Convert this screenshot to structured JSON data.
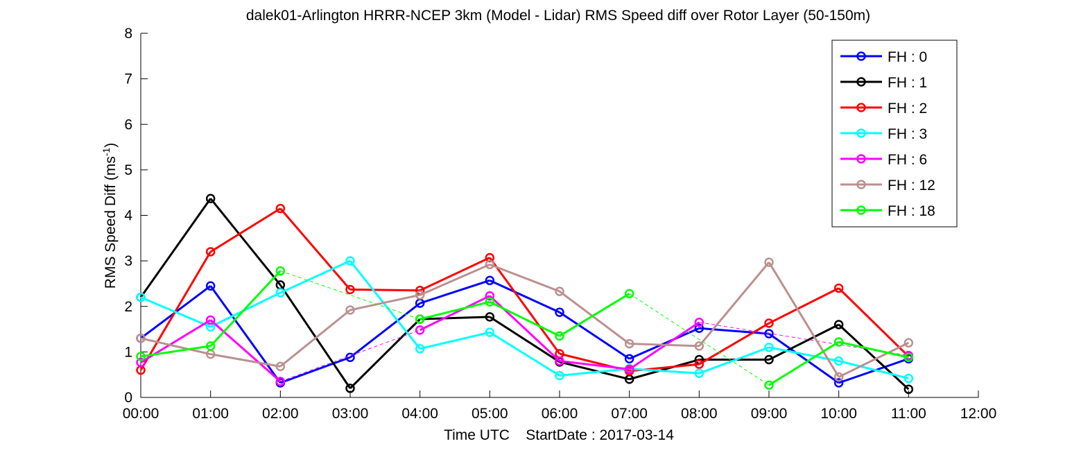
{
  "chart_data": {
    "type": "line",
    "title": "dalek01-Arlington HRRR-NCEP 3km (Model - Lidar) RMS Speed diff over Rotor Layer (50-150m)",
    "xlabel": "Time UTC    StartDate : 2017-03-14",
    "ylabel_main": "RMS Speed Diff (ms",
    "ylabel_sup": "-1",
    "ylabel_close": ")",
    "xlim": [
      0,
      12
    ],
    "ylim": [
      0,
      8
    ],
    "x_ticks": [
      0,
      1,
      2,
      3,
      4,
      5,
      6,
      7,
      8,
      9,
      10,
      11,
      12
    ],
    "x_tick_labels": [
      "00:00",
      "01:00",
      "02:00",
      "03:00",
      "04:00",
      "05:00",
      "06:00",
      "07:00",
      "08:00",
      "09:00",
      "10:00",
      "11:00",
      "12:00"
    ],
    "y_ticks": [
      0,
      1,
      2,
      3,
      4,
      5,
      6,
      7,
      8
    ],
    "y_tick_labels": [
      "0",
      "1",
      "2",
      "3",
      "4",
      "5",
      "6",
      "7",
      "8"
    ],
    "grid": false,
    "legend_position": "top-right",
    "series": [
      {
        "name": "FH : 0",
        "color": "#0000ff",
        "x": [
          0,
          1,
          2,
          3,
          4,
          5,
          6,
          7,
          8,
          9,
          10,
          11
        ],
        "y": [
          1.3,
          2.45,
          0.32,
          0.88,
          2.07,
          2.57,
          1.87,
          0.85,
          1.52,
          1.4,
          0.32,
          0.85
        ]
      },
      {
        "name": "FH : 1",
        "color": "#000000",
        "x": [
          0,
          1,
          2,
          3,
          4,
          5,
          6,
          7,
          8,
          9,
          10,
          11
        ],
        "y": [
          2.2,
          4.37,
          2.47,
          0.2,
          1.72,
          1.77,
          0.78,
          0.4,
          0.83,
          0.83,
          1.6,
          0.18
        ]
      },
      {
        "name": "FH : 2",
        "color": "#ff0000",
        "x": [
          0,
          1,
          2,
          3,
          4,
          5,
          6,
          7,
          8,
          9,
          10,
          11
        ],
        "y": [
          0.6,
          3.2,
          4.15,
          2.37,
          2.35,
          3.07,
          0.96,
          0.58,
          0.73,
          1.63,
          2.4,
          0.9
        ]
      },
      {
        "name": "FH : 3",
        "color": "#00ffff",
        "x": [
          0,
          1,
          2,
          3,
          4,
          5,
          6,
          7,
          8,
          9,
          10,
          11
        ],
        "y": [
          2.2,
          1.55,
          2.3,
          3.0,
          1.07,
          1.43,
          0.48,
          0.63,
          0.53,
          1.1,
          0.8,
          0.42
        ]
      },
      {
        "name": "FH : 6",
        "color": "#ff00ff",
        "x": [
          0,
          1,
          2,
          4,
          5,
          6,
          7,
          8,
          11
        ],
        "y": [
          0.77,
          1.7,
          0.35,
          1.48,
          2.23,
          0.8,
          0.62,
          1.65,
          0.92
        ],
        "dashed_gaps": [
          [
            2,
            4
          ],
          [
            8,
            11
          ]
        ]
      },
      {
        "name": "FH : 12",
        "color": "#bc8f8f",
        "x": [
          0,
          1,
          2,
          3,
          4,
          5,
          6,
          7,
          8,
          9,
          10,
          11
        ],
        "y": [
          1.3,
          0.95,
          0.68,
          1.92,
          2.25,
          2.92,
          2.33,
          1.18,
          1.13,
          2.97,
          0.45,
          1.2
        ]
      },
      {
        "name": "FH : 18",
        "color": "#00ff00",
        "x": [
          0,
          1,
          2,
          4,
          5,
          6,
          7,
          9,
          10,
          11
        ],
        "y": [
          0.9,
          1.13,
          2.78,
          1.72,
          2.1,
          1.35,
          2.28,
          0.27,
          1.22,
          0.88
        ],
        "dashed_gaps": [
          [
            2,
            4
          ],
          [
            7,
            9
          ]
        ]
      }
    ]
  }
}
